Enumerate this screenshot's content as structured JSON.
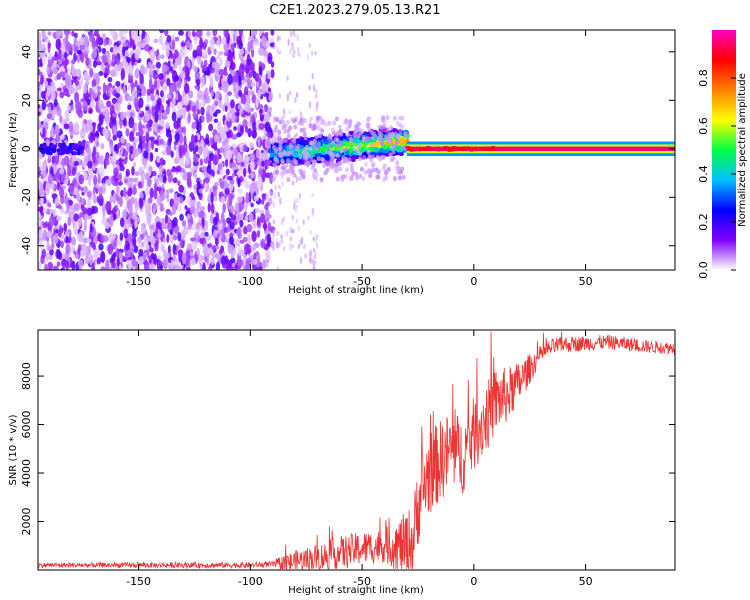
{
  "figure": {
    "title": "C2E1.2023.279.05.13.R21"
  },
  "chart_data": [
    {
      "type": "heatmap",
      "title": "",
      "xlabel": "Height of straight line (km)",
      "ylabel": "Frequency (Hz)",
      "xlim": [
        -195,
        90
      ],
      "ylim": [
        -50,
        49
      ],
      "xticks": [
        -150,
        -100,
        -50,
        0,
        50
      ],
      "xtick_labels": [
        "-150",
        "-100",
        "-50",
        "0",
        "50"
      ],
      "yticks": [
        -40,
        -20,
        0,
        20,
        40
      ],
      "ytick_labels": [
        "-40",
        "-20",
        "0",
        "20",
        "40"
      ],
      "colorbar": {
        "label": "Normalized spectral amplitude",
        "range": [
          0,
          1
        ],
        "ticks": [
          0.0,
          0.2,
          0.4,
          0.6,
          0.8
        ],
        "tick_labels": [
          "0.0",
          "0.2",
          "0.4",
          "0.6",
          "0.8"
        ],
        "colormap": [
          "#ffffff",
          "#8000ff",
          "#0000ff",
          "#00c0ff",
          "#00ff40",
          "#ffff00",
          "#ff8000",
          "#ff0000",
          "#ff00c0"
        ]
      },
      "regions": [
        {
          "name": "noise",
          "x_range": [
            -195,
            -90
          ],
          "freq_range": [
            -50,
            49
          ],
          "amplitude": 0.1
        },
        {
          "name": "transition",
          "x_range": [
            -90,
            -30
          ],
          "freq_center_start": -2,
          "freq_center_end": 3,
          "width_hz": 5,
          "amplitude": 0.45
        },
        {
          "name": "signal",
          "x_range": [
            -30,
            90
          ],
          "freq_center": 0,
          "width_hz": 1.5,
          "amplitude": 0.95
        }
      ]
    },
    {
      "type": "line",
      "title": "",
      "xlabel": "Height of straight line (km)",
      "ylabel": "SNR (10 * v/v)",
      "xlim": [
        -195,
        90
      ],
      "ylim": [
        0,
        9900
      ],
      "xticks": [
        -150,
        -100,
        -50,
        0,
        50
      ],
      "xtick_labels": [
        "-150",
        "-100",
        "-50",
        "0",
        "50"
      ],
      "yticks": [
        2000,
        4000,
        6000,
        8000
      ],
      "ytick_labels": [
        "2000",
        "4000",
        "6000",
        "8000"
      ],
      "series": [
        {
          "color": "#ee3333",
          "trend": {
            "x": [
              -195,
              -100,
              -85,
              -80,
              -70,
              -60,
              -50,
              -40,
              -30,
              -27,
              -25,
              -20,
              -15,
              -10,
              -5,
              0,
              5,
              10,
              15,
              20,
              25,
              30,
              35,
              40,
              50,
              60,
              70,
              80,
              90
            ],
            "y": [
              200,
              200,
              250,
              350,
              500,
              700,
              900,
              1000,
              1000,
              1200,
              2800,
              4000,
              4500,
              5000,
              4700,
              5600,
              6200,
              7000,
              7200,
              7700,
              8300,
              8900,
              9200,
              9300,
              9350,
              9400,
              9300,
              9200,
              9150
            ]
          },
          "noise": {
            "x": [
              -195,
              -90,
              -85,
              -60,
              -40,
              -25,
              -5,
              10,
              20,
              30,
              90
            ],
            "amp": [
              100,
              120,
              400,
              700,
              700,
              1800,
              1600,
              1400,
              900,
              350,
              250
            ]
          },
          "n_points": 1400
        }
      ]
    }
  ]
}
